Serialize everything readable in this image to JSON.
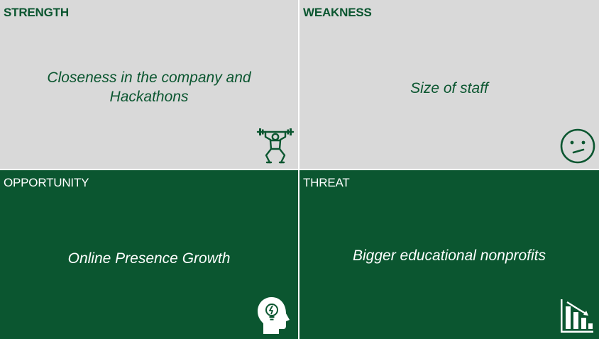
{
  "swot": {
    "strength": {
      "label": "STRENGTH",
      "text": "Closeness in the company and Hackathons",
      "icon": "weightlifter-icon"
    },
    "weakness": {
      "label": "WEAKNESS",
      "text": "Size of staff",
      "icon": "confused-face-icon"
    },
    "opportunity": {
      "label": "OPPORTUNITY",
      "text": "Online Presence Growth",
      "icon": "head-lightbulb-icon"
    },
    "threat": {
      "label": "THREAT",
      "text": "Bigger educational nonprofits",
      "icon": "declining-chart-icon"
    }
  },
  "colors": {
    "dark_green": "#0b5630",
    "light_gray": "#d9d9d9",
    "white": "#ffffff"
  }
}
